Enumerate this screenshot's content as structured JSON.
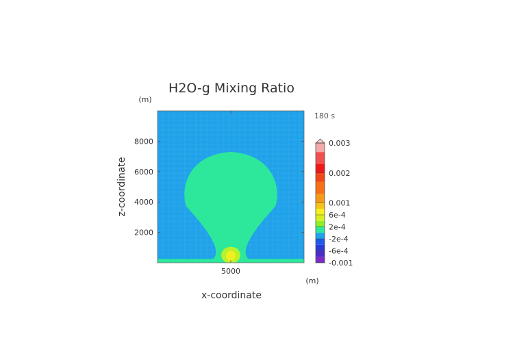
{
  "chart_data": {
    "type": "heatmap",
    "title": "H2O-g Mixing Ratio",
    "time_label": "180 s",
    "xlabel": "x-coordinate",
    "ylabel": "z-coordinate",
    "x_unit": "(m)",
    "y_unit": "(m)",
    "xlim": [
      0,
      10000
    ],
    "ylim": [
      0,
      10000
    ],
    "x_ticks": [
      5000
    ],
    "y_ticks": [
      2000,
      4000,
      6000,
      8000
    ],
    "x_tick_labels": [
      "5000"
    ],
    "y_tick_labels": [
      "2000",
      "4000",
      "6000",
      "8000"
    ],
    "background_color": "#1fa2ea",
    "surface_layer": {
      "z_top": 250,
      "color": "#2de89a"
    },
    "plume": {
      "color": "#2de89a",
      "center_x": 5000,
      "head_center_z": 4700,
      "head_half_width": 3200,
      "head_top_z": 7300,
      "stem_half_width_at_base": 1200
    },
    "core": {
      "center_x": 5000,
      "outer": {
        "color": "#b8f22e",
        "center_z": 500,
        "radius_x": 650,
        "radius_z": 550
      },
      "inner": {
        "color": "#f0f020",
        "center_z": 450,
        "radius_x": 320,
        "radius_z": 330
      }
    },
    "colorbar": {
      "tick_labels": [
        "0.003",
        "0.002",
        "0.001",
        "6e-4",
        "2e-4",
        "-2e-4",
        "-6e-4",
        "-0.001"
      ],
      "tick_values": [
        0.003,
        0.002,
        0.001,
        0.0006,
        0.0002,
        -0.0002,
        -0.0006,
        -0.001
      ],
      "levels_bottom_to_top": [
        {
          "from": -0.001,
          "to": -0.0008,
          "color": "#7a2cc4"
        },
        {
          "from": -0.0008,
          "to": -0.0006,
          "color": "#4b2cc4"
        },
        {
          "from": -0.0006,
          "to": -0.0004,
          "color": "#2c3ad6"
        },
        {
          "from": -0.0004,
          "to": -0.0002,
          "color": "#1c5ae8"
        },
        {
          "from": -0.0002,
          "to": 0.0,
          "color": "#1fa2ea"
        },
        {
          "from": 0.0,
          "to": 0.0002,
          "color": "#2de89a"
        },
        {
          "from": 0.0002,
          "to": 0.0004,
          "color": "#8cf02a"
        },
        {
          "from": 0.0004,
          "to": 0.0006,
          "color": "#d8f020"
        },
        {
          "from": 0.0006,
          "to": 0.0008,
          "color": "#f5f020"
        },
        {
          "from": 0.0008,
          "to": 0.001,
          "color": "#f5c418"
        },
        {
          "from": 0.001,
          "to": 0.0013,
          "color": "#f59a18"
        },
        {
          "from": 0.0013,
          "to": 0.0017,
          "color": "#f57018"
        },
        {
          "from": 0.0017,
          "to": 0.002,
          "color": "#f04818"
        },
        {
          "from": 0.002,
          "to": 0.0023,
          "color": "#f01818"
        },
        {
          "from": 0.0023,
          "to": 0.0027,
          "color": "#f05050"
        },
        {
          "from": 0.0027,
          "to": 0.003,
          "color": "#f4aaaa"
        }
      ],
      "over_color": "#f8cfcf"
    }
  }
}
